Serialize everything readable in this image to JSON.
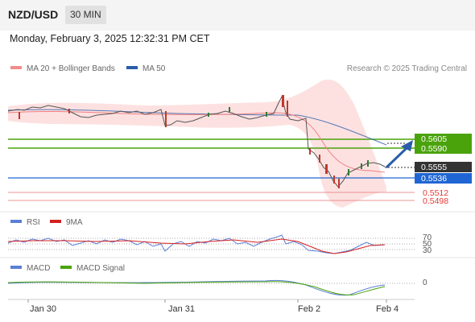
{
  "header": {
    "pair": "NZD/USD",
    "timeframe": "30 MIN"
  },
  "timestamp": "Monday, February 3, 2025 12:32:31 PM CET",
  "main_legend": [
    {
      "label": "MA 20 + Bollinger Bands",
      "color": "#f28b8b"
    },
    {
      "label": "MA 50",
      "color": "#2a5caa"
    }
  ],
  "credit": "Research © 2025 Trading Central",
  "levels": [
    {
      "value": "0.5605",
      "color": "#4aa30b",
      "style": "box"
    },
    {
      "value": "0.5590",
      "color": "#4aa30b",
      "style": "box"
    },
    {
      "value": "0.5555",
      "color": "#333333",
      "style": "box"
    },
    {
      "value": "0.5536",
      "color": "#1f66d4",
      "style": "box"
    },
    {
      "value": "0.5512",
      "color": "#e53935",
      "style": "text"
    },
    {
      "value": "0.5498",
      "color": "#e53935",
      "style": "text"
    }
  ],
  "rsi_legend": [
    {
      "label": "RSI",
      "color": "#5b7fd6"
    },
    {
      "label": "9MA",
      "color": "#d42020"
    }
  ],
  "rsi_levels": [
    "70",
    "50",
    "30"
  ],
  "macd_legend": [
    {
      "label": "MACD",
      "color": "#5b7fd6"
    },
    {
      "label": "MACD Signal",
      "color": "#4aa30b"
    }
  ],
  "macd_zero": "0",
  "x_axis": [
    "Jan 30",
    "Jan 31",
    "Feb 2",
    "Feb 4"
  ]
}
